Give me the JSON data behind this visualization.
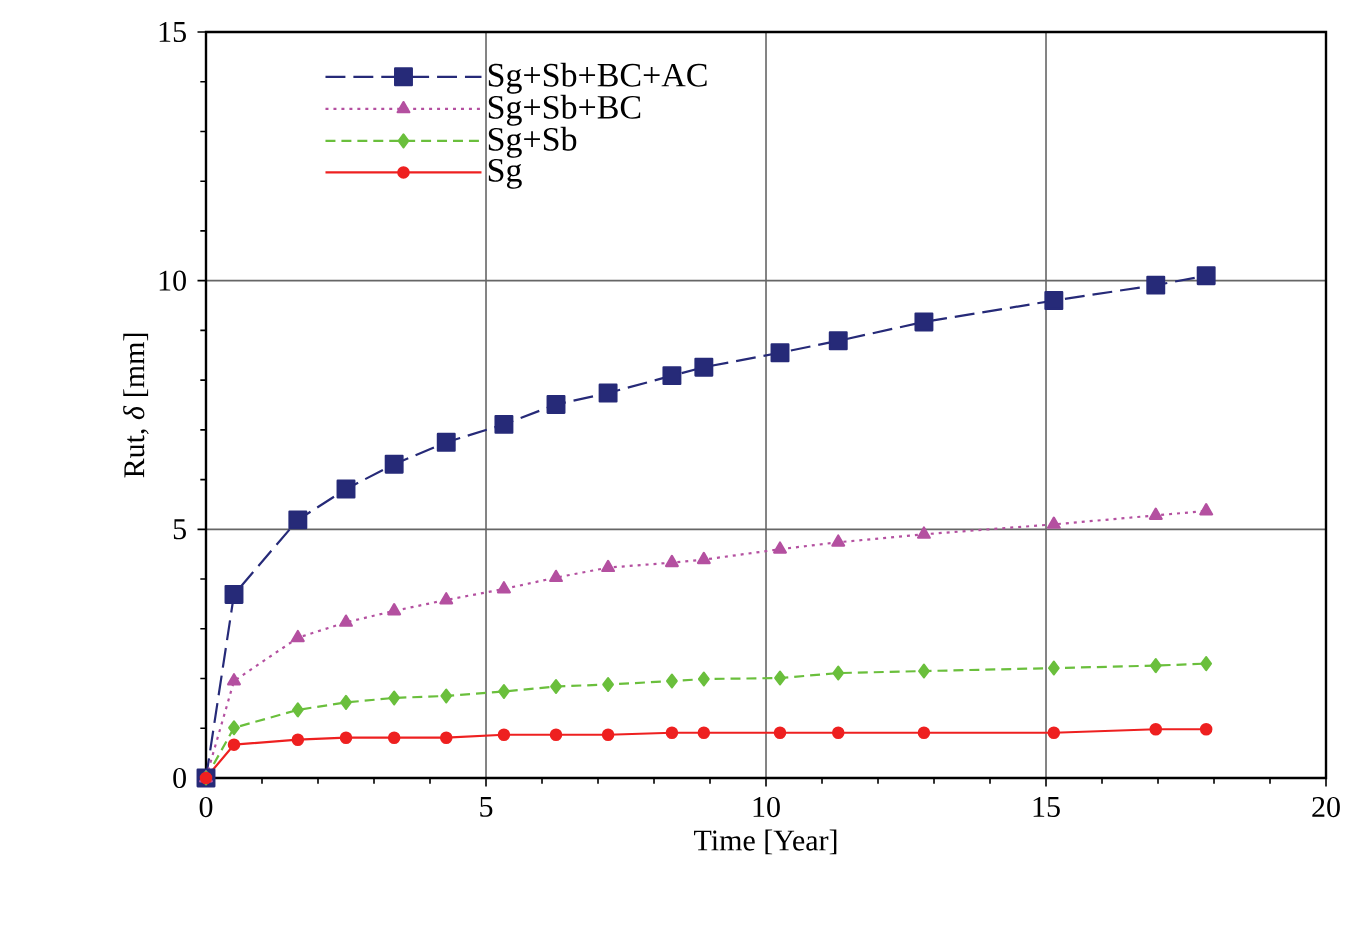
{
  "chart_data": {
    "type": "line",
    "xlabel": "Time [Year]",
    "ylabel": "Rut, *δ* [mm]",
    "x": [
      0,
      0.5,
      1.64,
      2.5,
      3.36,
      4.29,
      5.32,
      6.25,
      7.18,
      8.32,
      8.89,
      10.25,
      11.29,
      12.82,
      15.14,
      16.96,
      17.86
    ],
    "series": [
      {
        "name": "Sg+Sb+BC+AC",
        "color": "#262a78",
        "marker": "square",
        "line_style": "dashed",
        "values": [
          0,
          3.69,
          5.19,
          5.81,
          6.31,
          6.75,
          7.11,
          7.51,
          7.74,
          8.09,
          8.26,
          8.55,
          8.79,
          9.17,
          9.6,
          9.91,
          10.1
        ]
      },
      {
        "name": "Sg+Sb+BC",
        "color": "#b450a0",
        "marker": "triangle",
        "line_style": "dotted",
        "values": [
          0,
          1.95,
          2.82,
          3.13,
          3.36,
          3.58,
          3.8,
          4.03,
          4.23,
          4.33,
          4.39,
          4.6,
          4.74,
          4.9,
          5.1,
          5.28,
          5.37
        ]
      },
      {
        "name": "Sg+Sb",
        "color": "#6abf3c",
        "marker": "diamond",
        "line_style": "dashed",
        "values": [
          0,
          1.01,
          1.37,
          1.52,
          1.61,
          1.65,
          1.74,
          1.84,
          1.88,
          1.95,
          1.99,
          2.01,
          2.11,
          2.15,
          2.21,
          2.26,
          2.3
        ]
      },
      {
        "name": "Sg",
        "color": "#ee2020",
        "marker": "circle",
        "line_style": "solid",
        "values": [
          0,
          0.67,
          0.77,
          0.81,
          0.81,
          0.81,
          0.87,
          0.87,
          0.87,
          0.91,
          0.91,
          0.91,
          0.91,
          0.91,
          0.91,
          0.98,
          0.98
        ]
      }
    ],
    "xlim": [
      0,
      20
    ],
    "ylim": [
      0,
      15
    ],
    "xticks": [
      0,
      5,
      10,
      15,
      20
    ],
    "yticks": [
      0,
      5,
      10,
      15
    ],
    "grid": true,
    "legend": "top left"
  }
}
